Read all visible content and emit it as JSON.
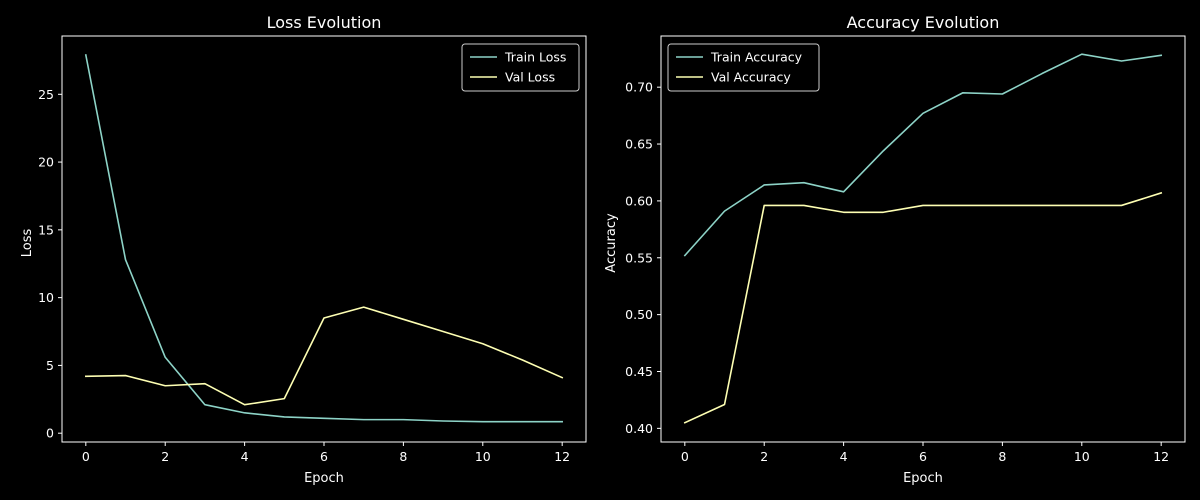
{
  "colors": {
    "background": "#000000",
    "axes": "#ffffff",
    "series_1": "#8dd3c7",
    "series_2": "#feffb3"
  },
  "chart_data": [
    {
      "type": "line",
      "title": "Loss Evolution",
      "xlabel": "Epoch",
      "ylabel": "Loss",
      "x": [
        0,
        1,
        2,
        3,
        4,
        5,
        6,
        7,
        8,
        9,
        10,
        11,
        12
      ],
      "series": [
        {
          "name": "Train Loss",
          "color": "#8dd3c7",
          "values": [
            27.9,
            12.8,
            5.6,
            2.1,
            1.5,
            1.2,
            1.1,
            1.0,
            1.0,
            0.9,
            0.85,
            0.85,
            0.85
          ]
        },
        {
          "name": "Val Loss",
          "color": "#feffb3",
          "values": [
            4.2,
            4.25,
            3.5,
            3.65,
            2.1,
            2.55,
            8.5,
            9.3,
            8.4,
            7.5,
            6.6,
            5.4,
            4.1
          ]
        }
      ],
      "xlim": [
        -0.6,
        12.6
      ],
      "ylim": [
        -0.65,
        29.3
      ],
      "xticks": [
        0,
        2,
        4,
        6,
        8,
        10,
        12
      ],
      "yticks": [
        0,
        5,
        10,
        15,
        20,
        25
      ],
      "ytick_labels": [
        "0",
        "5",
        "10",
        "15",
        "20",
        "25"
      ],
      "legend": "top-right",
      "grid": false
    },
    {
      "type": "line",
      "title": "Accuracy Evolution",
      "xlabel": "Epoch",
      "ylabel": "Accuracy",
      "x": [
        0,
        1,
        2,
        3,
        4,
        5,
        6,
        7,
        8,
        9,
        10,
        11,
        12
      ],
      "series": [
        {
          "name": "Train Accuracy",
          "color": "#8dd3c7",
          "values": [
            0.552,
            0.591,
            0.614,
            0.616,
            0.608,
            0.644,
            0.677,
            0.695,
            0.694,
            0.712,
            0.729,
            0.723,
            0.728
          ]
        },
        {
          "name": "Val Accuracy",
          "color": "#feffb3",
          "values": [
            0.405,
            0.421,
            0.596,
            0.596,
            0.59,
            0.59,
            0.596,
            0.596,
            0.596,
            0.596,
            0.596,
            0.596,
            0.607
          ]
        }
      ],
      "xlim": [
        -0.6,
        12.6
      ],
      "ylim": [
        0.388,
        0.745
      ],
      "xticks": [
        0,
        2,
        4,
        6,
        8,
        10,
        12
      ],
      "yticks": [
        0.4,
        0.45,
        0.5,
        0.55,
        0.6,
        0.65,
        0.7
      ],
      "ytick_labels": [
        "0.40",
        "0.45",
        "0.50",
        "0.55",
        "0.60",
        "0.65",
        "0.70"
      ],
      "legend": "top-left",
      "grid": false
    }
  ]
}
